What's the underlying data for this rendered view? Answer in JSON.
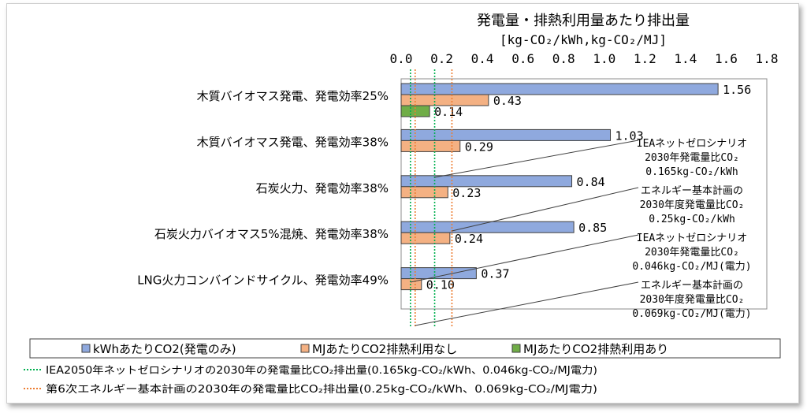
{
  "chart_data": {
    "type": "bar",
    "orientation": "horizontal",
    "title": "発電量・排熱利用量あたり排出量",
    "unit_label": "[kg-CO₂/kWh,kg-CO₂/MJ]",
    "xlim": [
      0,
      1.8
    ],
    "ticks": [
      "0.0",
      "0.2",
      "0.4",
      "0.6",
      "0.8",
      "1.0",
      "1.2",
      "1.4",
      "1.6",
      "1.8"
    ],
    "categories": [
      "木質バイオマス発電、発電効率25%",
      "木質バイオマス発電、発電効率38%",
      "石炭火力、発電効率38%",
      "石炭火力バイオマス5%混焼、発電効率38%",
      "LNG火力コンバインドサイクル、発電効率49%"
    ],
    "series": [
      {
        "name": "kWhあたりCO2(発電のみ)",
        "color": "#8fa9de",
        "values": [
          1.56,
          1.03,
          0.84,
          0.85,
          0.37
        ],
        "labels": [
          "1.56",
          "1.03",
          "0.84",
          "0.85",
          "0.37"
        ]
      },
      {
        "name": "MJあたりCO2排熱利用なし",
        "color": "#f4b183",
        "values": [
          0.43,
          0.29,
          0.23,
          0.24,
          0.1
        ],
        "labels": [
          "0.43",
          "0.29",
          "0.23",
          "0.24",
          "0.10"
        ]
      },
      {
        "name": "MJあたりCO2排熱利用あり",
        "color": "#70ad47",
        "values": [
          0.14,
          null,
          null,
          null,
          null
        ],
        "labels": [
          "0.14",
          "",
          "",
          "",
          ""
        ]
      }
    ],
    "reference_lines": [
      {
        "name": "IEA2050年ネットゼロシナリオの2030年の発電量比CO₂排出量(0.165kg-CO₂/kWh、0.046kg-CO₂/MJ電力)",
        "color": "#00b050",
        "values": [
          0.165,
          0.046
        ]
      },
      {
        "name": "第6次エネルギー基本計画の2030年の発電量比CO₂排出量(0.25kg-CO₂/kWh、0.069kg-CO₂/MJ電力)",
        "color": "#ed7d31",
        "values": [
          0.25,
          0.069
        ]
      }
    ],
    "annotations": [
      {
        "lines": [
          "IEAネットゼロシナリオ",
          "2030年発電量比CO₂",
          "0.165kg-CO₂/kWh"
        ],
        "value": 0.165
      },
      {
        "lines": [
          "エネルギー基本計画の",
          "2030年度発電量比CO₂",
          "0.25kg-CO₂/kWh"
        ],
        "value": 0.25
      },
      {
        "lines": [
          "IEAネットゼロシナリオ",
          "2030年発電量比CO₂",
          "0.046kg-CO₂/MJ(電力)"
        ],
        "value": 0.046
      },
      {
        "lines": [
          "エネルギー基本計画の",
          "2030年度発電量比CO₂",
          "0.069kg-CO₂/MJ(電力)"
        ],
        "value": 0.069
      }
    ],
    "grid": false,
    "legend_position": "bottom"
  }
}
